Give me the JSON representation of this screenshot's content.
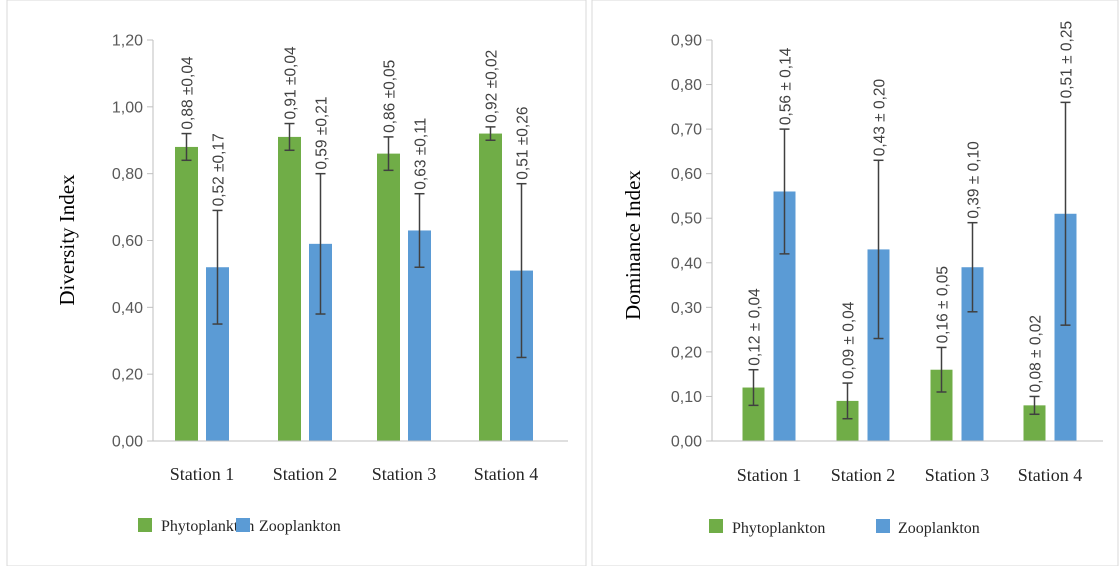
{
  "chart_data": [
    {
      "type": "bar",
      "ylabel": "Diversity Index",
      "ylim": [
        0,
        1.2
      ],
      "ytick_step": 0.2,
      "yticks": [
        "0,00",
        "0,20",
        "0,40",
        "0,60",
        "0,80",
        "1,00",
        "1,20"
      ],
      "categories": [
        "Station 1",
        "Station 2",
        "Station 3",
        "Station 4"
      ],
      "series": [
        {
          "name": "Phytoplankton",
          "color": "#70AD47",
          "values": [
            0.88,
            0.91,
            0.86,
            0.92
          ],
          "errors": [
            0.04,
            0.04,
            0.05,
            0.02
          ],
          "labels": [
            "0,88 ±0,04",
            "0,91 ±0,04",
            "0,86 ±0,05",
            "0,92 ±0,02"
          ]
        },
        {
          "name": "Zooplankton",
          "color": "#5B9BD5",
          "values": [
            0.52,
            0.59,
            0.63,
            0.51
          ],
          "errors": [
            0.17,
            0.21,
            0.11,
            0.26
          ],
          "labels": [
            "0,52 ±0,17",
            "0,59 ±0,21",
            "0,63 ±0,11",
            "0,51 ±0,26"
          ]
        }
      ],
      "legend_position": "bottom",
      "grid": false
    },
    {
      "type": "bar",
      "ylabel": "Dominance Index",
      "ylim": [
        0,
        0.9
      ],
      "ytick_step": 0.1,
      "yticks": [
        "0,00",
        "0,10",
        "0,20",
        "0,30",
        "0,40",
        "0,50",
        "0,60",
        "0,70",
        "0,80",
        "0,90"
      ],
      "categories": [
        "Station 1",
        "Station 2",
        "Station 3",
        "Station 4"
      ],
      "series": [
        {
          "name": "Phytoplankton",
          "color": "#70AD47",
          "values": [
            0.12,
            0.09,
            0.16,
            0.08
          ],
          "errors": [
            0.04,
            0.04,
            0.05,
            0.02
          ],
          "labels": [
            "0,12 ± 0,04",
            "0,09 ± 0,04",
            "0,16 ± 0,05",
            "0,08 ± 0,02"
          ]
        },
        {
          "name": "Zooplankton",
          "color": "#5B9BD5",
          "values": [
            0.56,
            0.43,
            0.39,
            0.51
          ],
          "errors": [
            0.14,
            0.2,
            0.1,
            0.25
          ],
          "labels": [
            "0,56 ± 0,14",
            "0,43 ± 0,20",
            "0,39 ± 0,10",
            "0,51 ± 0,25"
          ]
        }
      ],
      "legend_position": "bottom",
      "grid": false
    }
  ]
}
